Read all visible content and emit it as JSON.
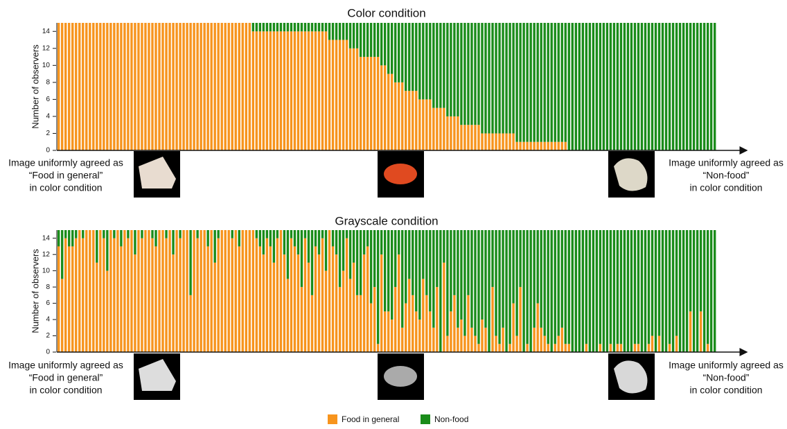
{
  "chart_data": [
    {
      "type": "stacked-bar",
      "title": "Color condition",
      "ylabel": "Number of observers",
      "ylim": [
        0,
        15
      ],
      "yticks": [
        0,
        2,
        4,
        6,
        8,
        10,
        12,
        14
      ],
      "annotations": {
        "left": [
          "Image uniformly agreed as",
          "“Food in general”",
          "in color condition"
        ],
        "right": [
          "Image uniformly agreed as",
          "“Non-food”",
          "in color condition"
        ]
      },
      "series": [
        {
          "name": "Food in general",
          "color": "#f7941d",
          "values": [
            15,
            15,
            15,
            15,
            15,
            15,
            15,
            15,
            15,
            15,
            15,
            15,
            15,
            15,
            15,
            15,
            15,
            15,
            15,
            15,
            15,
            15,
            15,
            15,
            15,
            15,
            15,
            15,
            15,
            15,
            15,
            15,
            15,
            15,
            15,
            15,
            15,
            15,
            15,
            15,
            15,
            15,
            15,
            15,
            15,
            15,
            15,
            15,
            15,
            15,
            15,
            15,
            15,
            15,
            15,
            15,
            14,
            14,
            14,
            14,
            14,
            14,
            14,
            14,
            14,
            14,
            14,
            14,
            14,
            14,
            14,
            14,
            14,
            14,
            14,
            14,
            14,
            14,
            13,
            13,
            13,
            13,
            13,
            13,
            12,
            12,
            12,
            11,
            11,
            11,
            11,
            11,
            11,
            10,
            10,
            9,
            9,
            8,
            8,
            8,
            7,
            7,
            7,
            7,
            6,
            6,
            6,
            6,
            5,
            5,
            5,
            5,
            4,
            4,
            4,
            4,
            3,
            3,
            3,
            3,
            3,
            3,
            2,
            2,
            2,
            2,
            2,
            2,
            2,
            2,
            2,
            2,
            1,
            1,
            1,
            1,
            1,
            1,
            1,
            1,
            1,
            1,
            1,
            1,
            1,
            1,
            1,
            0,
            0,
            0,
            0,
            0,
            0,
            0,
            0,
            0,
            0,
            0,
            0,
            0,
            0,
            0,
            0,
            0,
            0,
            0,
            0,
            0,
            0,
            0,
            0,
            0,
            0,
            0,
            0,
            0,
            0,
            0,
            0,
            0,
            0,
            0,
            0,
            0,
            0,
            0,
            0,
            0,
            0,
            0
          ]
        },
        {
          "name": "Non-food",
          "color": "#1a8c1a",
          "values": [
            0,
            0,
            0,
            0,
            0,
            0,
            0,
            0,
            0,
            0,
            0,
            0,
            0,
            0,
            0,
            0,
            0,
            0,
            0,
            0,
            0,
            0,
            0,
            0,
            0,
            0,
            0,
            0,
            0,
            0,
            0,
            0,
            0,
            0,
            0,
            0,
            0,
            0,
            0,
            0,
            0,
            0,
            0,
            0,
            0,
            0,
            0,
            0,
            0,
            0,
            0,
            0,
            0,
            0,
            0,
            0,
            1,
            1,
            1,
            1,
            1,
            1,
            1,
            1,
            1,
            1,
            1,
            1,
            1,
            1,
            1,
            1,
            1,
            1,
            1,
            1,
            1,
            1,
            2,
            2,
            2,
            2,
            2,
            2,
            3,
            3,
            3,
            4,
            4,
            4,
            4,
            4,
            4,
            5,
            5,
            6,
            6,
            7,
            7,
            7,
            8,
            8,
            8,
            8,
            9,
            9,
            9,
            9,
            10,
            10,
            10,
            10,
            11,
            11,
            11,
            11,
            12,
            12,
            12,
            12,
            12,
            12,
            13,
            13,
            13,
            13,
            13,
            13,
            13,
            13,
            13,
            13,
            14,
            14,
            14,
            14,
            14,
            14,
            14,
            14,
            14,
            14,
            14,
            14,
            14,
            14,
            14,
            15,
            15,
            15,
            15,
            15,
            15,
            15,
            15,
            15,
            15,
            15,
            15,
            15,
            15,
            15,
            15,
            15,
            15,
            15,
            15,
            15,
            15,
            15,
            15,
            15,
            15,
            15,
            15,
            15,
            15,
            15,
            15,
            15,
            15,
            15,
            15,
            15,
            15,
            15,
            15,
            15,
            15,
            15
          ]
        }
      ]
    },
    {
      "type": "stacked-bar",
      "title": "Grayscale condition",
      "ylabel": "Number of observers",
      "ylim": [
        0,
        15
      ],
      "yticks": [
        0,
        2,
        4,
        6,
        8,
        10,
        12,
        14
      ],
      "annotations": {
        "left": [
          "Image uniformly agreed as",
          "“Food in general”",
          "in color condition"
        ],
        "right": [
          "Image uniformly agreed as",
          "“Non-food”",
          "in color condition"
        ]
      },
      "series": [
        {
          "color": "#f7941d",
          "values": [
            13,
            9,
            14,
            13,
            13,
            14,
            15,
            14,
            15,
            15,
            15,
            11,
            15,
            14,
            10,
            15,
            14,
            15,
            13,
            15,
            14,
            15,
            12,
            15,
            14,
            15,
            15,
            14,
            13,
            15,
            15,
            14,
            15,
            12,
            15,
            14,
            15,
            15,
            7,
            15,
            14,
            15,
            15,
            13,
            15,
            11,
            14,
            15,
            15,
            15,
            14,
            15,
            13,
            15,
            15,
            15,
            15,
            14,
            13,
            12,
            14,
            13,
            11,
            14,
            15,
            12,
            9,
            14,
            13,
            12,
            8,
            14,
            11,
            7,
            13,
            12,
            14,
            10,
            15,
            13,
            12,
            8,
            10,
            14,
            9,
            11,
            7,
            7,
            12,
            13,
            6,
            8,
            1,
            12,
            5,
            5,
            4,
            8,
            12,
            3,
            6,
            9,
            7,
            5,
            4,
            9,
            7,
            5,
            3,
            8,
            0,
            11,
            2,
            5,
            7,
            3,
            4,
            2,
            7,
            3,
            2,
            1,
            4,
            3,
            0,
            8,
            2,
            1,
            3,
            0,
            1,
            6,
            2,
            8,
            0,
            1,
            0,
            3,
            6,
            3,
            2,
            1,
            0,
            1,
            2,
            3,
            1,
            1,
            0,
            0,
            0,
            0,
            1,
            0,
            0,
            0,
            1,
            0,
            0,
            1,
            0,
            1,
            1,
            0,
            0,
            0,
            1,
            1,
            0,
            0,
            1,
            2,
            0,
            2,
            0,
            0,
            1,
            0,
            2,
            0,
            0,
            0,
            5,
            0,
            0,
            5,
            0,
            1,
            0,
            0
          ]
        },
        {
          "color": "#1a8c1a",
          "values": [
            2,
            6,
            1,
            2,
            2,
            1,
            0,
            1,
            0,
            0,
            0,
            4,
            0,
            1,
            5,
            0,
            1,
            0,
            2,
            0,
            1,
            0,
            3,
            0,
            1,
            0,
            0,
            1,
            2,
            0,
            0,
            1,
            0,
            3,
            0,
            1,
            0,
            0,
            8,
            0,
            1,
            0,
            0,
            2,
            0,
            4,
            1,
            0,
            0,
            0,
            1,
            0,
            2,
            0,
            0,
            0,
            0,
            1,
            2,
            3,
            1,
            2,
            4,
            1,
            0,
            3,
            6,
            1,
            2,
            3,
            7,
            1,
            4,
            8,
            2,
            3,
            1,
            5,
            0,
            2,
            3,
            7,
            5,
            1,
            6,
            4,
            8,
            8,
            3,
            2,
            9,
            7,
            14,
            3,
            10,
            10,
            11,
            7,
            3,
            12,
            9,
            6,
            8,
            10,
            11,
            6,
            8,
            10,
            12,
            7,
            15,
            4,
            13,
            10,
            8,
            12,
            11,
            13,
            8,
            12,
            13,
            14,
            11,
            12,
            15,
            7,
            13,
            14,
            12,
            15,
            14,
            9,
            13,
            7,
            15,
            14,
            15,
            12,
            9,
            12,
            13,
            14,
            15,
            14,
            13,
            12,
            14,
            14,
            15,
            15,
            15,
            15,
            14,
            15,
            15,
            15,
            14,
            15,
            15,
            14,
            15,
            14,
            14,
            15,
            15,
            15,
            14,
            14,
            15,
            15,
            14,
            13,
            15,
            13,
            15,
            15,
            14,
            15,
            13,
            15,
            15,
            15,
            10,
            15,
            15,
            10,
            15,
            14,
            15,
            15
          ]
        }
      ]
    }
  ]
}
